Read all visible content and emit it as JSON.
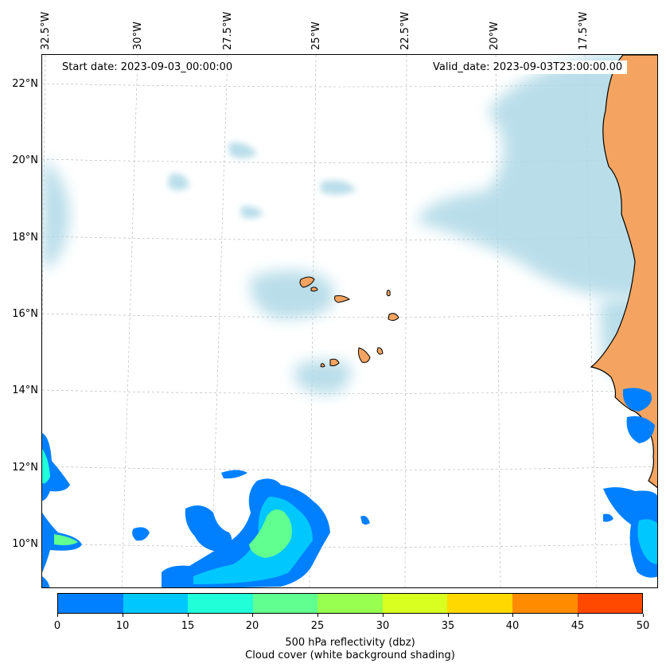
{
  "map": {
    "start_date": "Start date: 2023-09-03_00:00:00",
    "valid_date": "Valid_date: 2023-09-03T23:00:00.00",
    "longitude_labels": [
      "32.5°W",
      "30°W",
      "27.5°W",
      "25°W",
      "22.5°W",
      "20°W",
      "17.5°W"
    ],
    "latitude_labels": [
      "22°N",
      "20°N",
      "18°N",
      "16°N",
      "14°N",
      "12°N",
      "10°N"
    ],
    "extent": {
      "lon_min": -33.0,
      "lon_max": -15.6,
      "lat_min": 8.9,
      "lat_max": 22.8
    },
    "colors": {
      "land": "#f4a460",
      "cloud": "#add8e6",
      "coastline": "#000000",
      "gridline": "#b0b0b0"
    }
  },
  "colorbar": {
    "colors": [
      "#0080ff",
      "#00c8ff",
      "#20ffd8",
      "#60ff90",
      "#98ff50",
      "#d8ff20",
      "#ffd800",
      "#ff8c00",
      "#ff4800"
    ],
    "ticks": [
      "0",
      "10",
      "15",
      "20",
      "25",
      "30",
      "35",
      "40",
      "45",
      "50"
    ],
    "label_line1": "500 hPa reflectivity (dbz)",
    "label_line2": "Cloud cover (white background shading)"
  }
}
